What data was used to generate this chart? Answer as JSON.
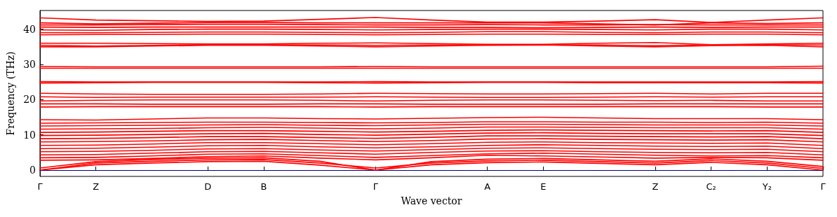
{
  "chart_data": {
    "type": "line",
    "xlabel": "Wave vector",
    "ylabel": "Frequency (THz)",
    "categories": [
      "Γ",
      "Z",
      null,
      "D",
      "B",
      null,
      "Γ",
      null,
      "A",
      "E",
      null,
      "Z",
      "C₂",
      "Y₂",
      "Γ"
    ],
    "ylim": [
      -1.8,
      45.3
    ],
    "yticks": [
      0,
      10,
      20,
      30,
      40
    ],
    "grid": false,
    "marker": "none",
    "line_style": "solid",
    "ref_lines": [
      {
        "axis": "y",
        "value": 0,
        "color": "#0000ff",
        "line_style": "dotted"
      }
    ],
    "series": [
      {
        "color": "#ff0000",
        "values": [
          0,
          1.5,
          2,
          2.4,
          2.5,
          1.4,
          0,
          1.5,
          2.1,
          2.3,
          1.9,
          1.5,
          2.2,
          1.5,
          0
        ]
      },
      {
        "color": "#ff0000",
        "values": [
          0,
          2,
          2.5,
          2.9,
          3,
          2,
          0.6,
          2,
          2.6,
          2.8,
          2.4,
          2,
          2.7,
          2,
          0.5
        ]
      },
      {
        "color": "#ff0000",
        "values": [
          0.6,
          2.4,
          3,
          3.4,
          3.5,
          2.5,
          0,
          2.4,
          3.1,
          3.3,
          2.9,
          2.5,
          3.2,
          2.5,
          1
        ]
      },
      {
        "color": "#ff0000",
        "values": [
          2.8,
          2.9,
          3.3,
          3.8,
          4,
          3.4,
          2.9,
          3.5,
          4.2,
          4,
          3.7,
          3.4,
          3.6,
          3.5,
          2.8
        ]
      },
      {
        "color": "#ff0000",
        "values": [
          3.5,
          3.6,
          4,
          4.5,
          4.6,
          4.1,
          3.6,
          4.1,
          4.6,
          4.8,
          4.5,
          4.2,
          4,
          4.1,
          3.5
        ]
      },
      {
        "color": "#ff0000",
        "values": [
          4.3,
          4.4,
          4.8,
          5.2,
          5.3,
          4.9,
          4.5,
          5,
          5.4,
          5.5,
          5.2,
          5,
          4.9,
          5,
          4.3
        ]
      },
      {
        "color": "#ff0000",
        "values": [
          5.2,
          5.3,
          5.6,
          6,
          6.1,
          5.7,
          5.4,
          5.8,
          6.2,
          6.3,
          6.1,
          5.9,
          5.8,
          5.9,
          5.2
        ]
      },
      {
        "color": "#ff0000",
        "values": [
          6.1,
          6.2,
          6.5,
          6.9,
          7,
          6.6,
          6.3,
          6.6,
          7,
          7.2,
          7,
          6.8,
          6.7,
          6.8,
          6.1
        ]
      },
      {
        "color": "#ff0000",
        "values": [
          7,
          7.1,
          7.4,
          7.8,
          7.8,
          7.5,
          7.2,
          7.5,
          7.9,
          8,
          7.8,
          7.7,
          7.6,
          7.7,
          7
        ]
      },
      {
        "color": "#ff0000",
        "values": [
          8,
          8.1,
          8.3,
          8.6,
          8.7,
          8.4,
          8.1,
          8.4,
          8.8,
          8.9,
          8.7,
          8.6,
          8.5,
          8.6,
          8
        ]
      },
      {
        "color": "#ff0000",
        "values": [
          8.9,
          9,
          9.2,
          9.5,
          9.5,
          9.2,
          9,
          9.3,
          9.7,
          9.7,
          9.6,
          9.5,
          9.4,
          9.5,
          8.9
        ]
      },
      {
        "color": "#ff0000",
        "values": [
          9.8,
          9.9,
          10.1,
          10.3,
          10.4,
          10.1,
          9.9,
          10.2,
          10.5,
          10.6,
          10.4,
          10.3,
          10.3,
          10.3,
          9.8
        ]
      },
      {
        "color": "#ff0000",
        "values": [
          10.7,
          10.8,
          11,
          11.2,
          11.2,
          11,
          10.8,
          11,
          11.3,
          11.4,
          11.3,
          11.2,
          11.1,
          11.2,
          10.7
        ]
      },
      {
        "color": "#ff0000",
        "values": [
          11.6,
          11.7,
          11.8,
          12,
          12.1,
          11.9,
          11.7,
          11.9,
          12.2,
          12.2,
          12.1,
          12,
          12,
          12,
          11.6
        ]
      },
      {
        "color": "#ff0000",
        "values": [
          12.5,
          12.6,
          12.7,
          12.8,
          12.9,
          12.7,
          12.6,
          12.8,
          13,
          13,
          12.9,
          12.8,
          12.8,
          12.8,
          12.5
        ]
      },
      {
        "color": "#ff0000",
        "values": [
          13.3,
          13.4,
          13.5,
          13.6,
          13.6,
          13.5,
          13.4,
          13.5,
          13.7,
          13.7,
          13.6,
          13.6,
          13.5,
          13.6,
          13.3
        ]
      },
      {
        "color": "#ff0000",
        "values": [
          14.3,
          14.2,
          14.5,
          14.8,
          14.8,
          14.6,
          14.5,
          14.7,
          14.9,
          15,
          14.8,
          14.6,
          14.6,
          14.6,
          14.3
        ]
      },
      {
        "color": "#ff0000",
        "values": [
          17.9,
          18,
          18,
          18,
          18,
          18,
          17.9,
          18,
          18,
          18,
          18,
          18,
          18,
          17.9,
          17.9
        ]
      },
      {
        "color": "#ff0000",
        "values": [
          18.8,
          18.8,
          18.7,
          18.7,
          18.7,
          18.8,
          18.8,
          18.7,
          18.7,
          18.7,
          18.7,
          18.8,
          18.8,
          18.8,
          18.8
        ]
      },
      {
        "color": "#ff0000",
        "values": [
          19.6,
          19.8,
          19.9,
          19.9,
          19.9,
          19.8,
          19.6,
          19.8,
          19.9,
          19.9,
          19.8,
          19.7,
          19.8,
          19.6,
          19.6
        ]
      },
      {
        "color": "#ff0000",
        "values": [
          20.8,
          20.6,
          20.7,
          20.7,
          20.7,
          20.7,
          20.8,
          20.7,
          20.6,
          20.6,
          20.7,
          20.8,
          20.7,
          20.8,
          20.8
        ]
      },
      {
        "color": "#ff0000",
        "values": [
          21.8,
          21.6,
          21.5,
          21.5,
          21.5,
          21.6,
          21.8,
          21.7,
          21.6,
          21.6,
          21.7,
          21.8,
          21.6,
          21.8,
          21.8
        ]
      },
      {
        "color": "#ff0000",
        "values": [
          24.7,
          24.8,
          24.9,
          24.9,
          24.9,
          24.8,
          24.7,
          24.8,
          24.9,
          24.9,
          24.8,
          24.8,
          24.8,
          24.8,
          24.7
        ]
      },
      {
        "color": "#ff0000",
        "values": [
          25.1,
          25,
          25,
          25,
          25,
          25,
          25.1,
          25,
          25,
          25,
          25,
          25,
          25,
          25,
          25.1
        ]
      },
      {
        "color": "#ff0000",
        "values": [
          28.9,
          28.9,
          28.9,
          28.9,
          28.9,
          28.9,
          28.9,
          28.9,
          28.9,
          28.9,
          28.9,
          28.9,
          28.9,
          28.9,
          28.9
        ]
      },
      {
        "color": "#ff0000",
        "values": [
          29.4,
          29.3,
          29.3,
          29.3,
          29.3,
          29.3,
          29.4,
          29.3,
          29.3,
          29.3,
          29.3,
          29.3,
          29.3,
          29.3,
          29.5
        ]
      },
      {
        "color": "#ff0000",
        "values": [
          35,
          35,
          35.2,
          35.4,
          35.4,
          35.2,
          35,
          35.2,
          35.4,
          35.5,
          35.2,
          35,
          35.3,
          35.4,
          35
        ]
      },
      {
        "color": "#ff0000",
        "values": [
          35.4,
          35.2,
          35.4,
          35.6,
          35.6,
          35.5,
          35.4,
          35.5,
          35.6,
          35.6,
          35.5,
          35.3,
          35.6,
          35.6,
          35.5
        ]
      },
      {
        "color": "#ff0000",
        "values": [
          36,
          36,
          35.9,
          35.8,
          35.8,
          36,
          36.1,
          35.9,
          35.7,
          35.7,
          36,
          36.2,
          35.6,
          35.8,
          36
        ]
      },
      {
        "color": "#ff0000",
        "values": [
          38.4,
          38.5,
          38.5,
          38.6,
          38.6,
          38.5,
          38.4,
          38.5,
          38.6,
          38.6,
          38.5,
          38.5,
          38.6,
          38.6,
          38.4
        ]
      },
      {
        "color": "#ff0000",
        "values": [
          39,
          39,
          39.1,
          39.2,
          39.2,
          39.1,
          39,
          39.1,
          39.3,
          39.3,
          39.1,
          39,
          39.2,
          39.2,
          39
        ]
      },
      {
        "color": "#ff0000",
        "values": [
          39.8,
          39.7,
          39.9,
          40,
          40,
          39.9,
          39.8,
          39.9,
          40,
          40,
          39.9,
          39.8,
          40,
          40,
          39.8
        ]
      },
      {
        "color": "#ff0000",
        "values": [
          40.6,
          40.5,
          40.6,
          40.6,
          40.6,
          40.6,
          40.6,
          40.5,
          40.5,
          40.4,
          40.5,
          40.6,
          40.5,
          40.6,
          40.6
        ]
      },
      {
        "color": "#ff0000",
        "values": [
          41.2,
          41.2,
          41.3,
          41.4,
          41.4,
          41.3,
          41.2,
          41.2,
          41.3,
          41.2,
          41.2,
          41.3,
          41.2,
          41.2,
          41.2
        ]
      },
      {
        "color": "#ff0000",
        "values": [
          41.8,
          41.5,
          41.7,
          41.9,
          41.9,
          41.8,
          41.8,
          41.8,
          41.8,
          41.8,
          41.5,
          41.2,
          41.8,
          41.6,
          41.8
        ]
      },
      {
        "color": "#ff0000",
        "values": [
          43.2,
          42.6,
          42.4,
          42.2,
          42.3,
          42.8,
          43.3,
          42.6,
          42,
          42,
          42.3,
          42.7,
          41.9,
          42.6,
          43.2
        ]
      }
    ]
  }
}
